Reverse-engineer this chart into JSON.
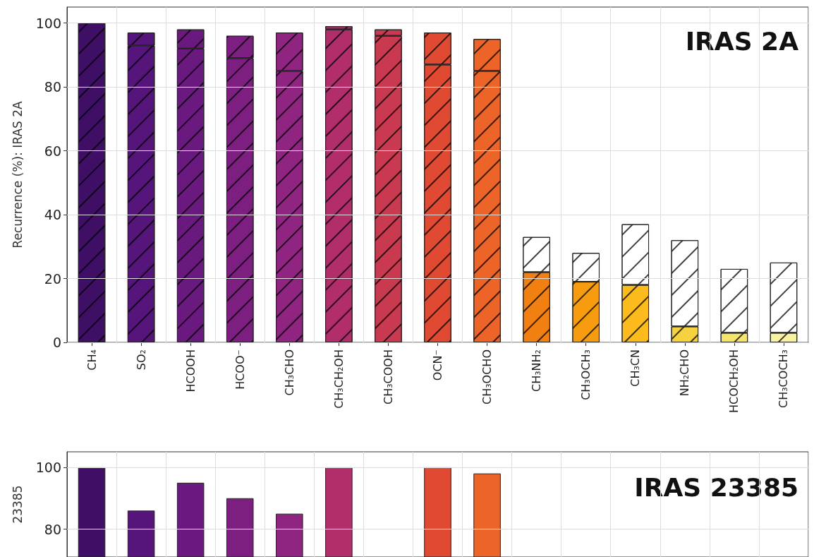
{
  "chart_data": [
    {
      "type": "bar",
      "stacked": true,
      "ylabel": "Recurrence (%): IRAS 2A",
      "annotations": [
        "IRAS 2A"
      ],
      "categories": [
        "CH₄",
        "SO₂",
        "HCOOH",
        "HCOO⁻",
        "CH₃CHO",
        "CH₃CH₂OH",
        "CH₃COOH",
        "OCN⁻",
        "CH₃OCHO",
        "CH₃NH₂",
        "CH₃OCH₃",
        "CH₃CN",
        "NH₂CHO",
        "HCOCH₂OH",
        "CH₃COCH₃"
      ],
      "series": [
        {
          "values": [
            100,
            93,
            92,
            89,
            85,
            98,
            96,
            87,
            85,
            22,
            19,
            18,
            5,
            3,
            3
          ],
          "colors": [
            "#3f0f66",
            "#56157a",
            "#6a1a7e",
            "#7c1f80",
            "#8f2580",
            "#b22e6a",
            "#c9394f",
            "#e04a32",
            "#ec6428",
            "#f17f12",
            "#f79c0e",
            "#fbbb1c",
            "#f6d23f",
            "#f5e56c",
            "#f9f3a0"
          ]
        },
        {
          "values": [
            0,
            4,
            6,
            7,
            12,
            1,
            2,
            10,
            10,
            11,
            9,
            19,
            27,
            20,
            22
          ],
          "colors": [
            "#3f0f66",
            "#56157a",
            "#6a1a7e",
            "#7c1f80",
            "#8f2580",
            "#b22e6a",
            "#c9394f",
            "#e04a32",
            "#ec6428",
            "#ffffff",
            "#ffffff",
            "#ffffff",
            "#ffffff",
            "#ffffff",
            "#ffffff"
          ]
        }
      ],
      "ylim": [
        0,
        105
      ],
      "yticks": [
        0,
        20,
        40,
        60,
        80,
        100
      ],
      "grid": true
    },
    {
      "type": "bar",
      "ylabel": "23385",
      "annotations": [
        "IRAS 23385"
      ],
      "tick_labels": "y",
      "categories": [
        null,
        null,
        null,
        null,
        null,
        null,
        null,
        null,
        null,
        null,
        null,
        null,
        null,
        null,
        null
      ],
      "values": [
        100,
        86,
        95,
        90,
        85,
        100,
        null,
        100,
        98,
        null,
        null,
        null,
        null,
        null,
        null
      ],
      "colors": [
        "#3f0f66",
        "#56157a",
        "#6a1a7e",
        "#7c1f80",
        "#8f2580",
        "#b22e6a",
        "#c9394f",
        "#e04a32",
        "#ec6428",
        "#f17f12",
        "#f79c0e",
        "#fbbb1c",
        "#f6d23f",
        "#f5e56c",
        "#f9f3a0"
      ],
      "ylim": [
        71,
        105
      ],
      "yticks": [
        80,
        100
      ],
      "grid": true
    }
  ]
}
